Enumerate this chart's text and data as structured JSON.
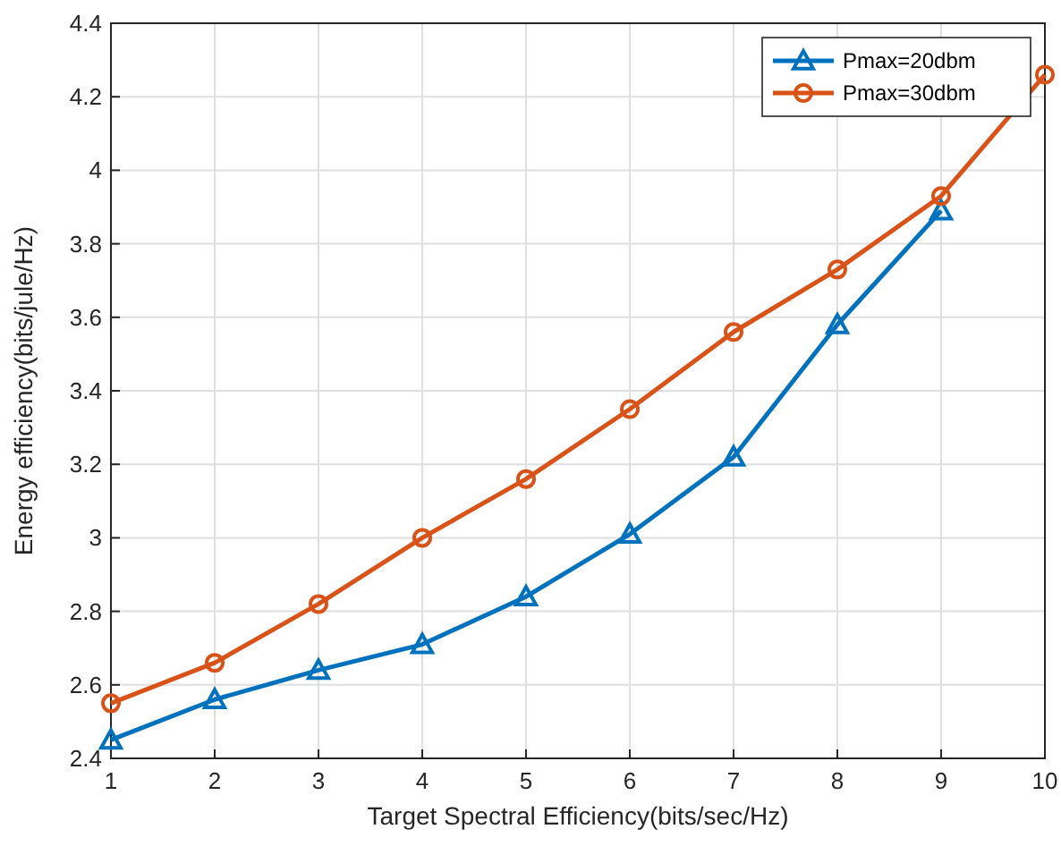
{
  "chart_data": {
    "type": "line",
    "xlabel": "Target Spectral Efficiency(bits/sec/Hz)",
    "ylabel": "Energy efficiency(bits/jule/Hz)",
    "x": [
      1,
      2,
      3,
      4,
      5,
      6,
      7,
      8,
      9,
      10
    ],
    "series": [
      {
        "name": "Pmax=20dbm",
        "color": "#0072bd",
        "marker": "triangle",
        "values": [
          2.45,
          2.56,
          2.64,
          2.71,
          2.84,
          3.01,
          3.22,
          3.58,
          3.89,
          null
        ]
      },
      {
        "name": "Pmax=30dbm",
        "color": "#d95319",
        "marker": "circle",
        "values": [
          2.55,
          2.66,
          2.82,
          3.0,
          3.16,
          3.35,
          3.56,
          3.73,
          3.93,
          4.26
        ]
      }
    ],
    "xlim": [
      1,
      10
    ],
    "xticks": [
      1,
      2,
      3,
      4,
      5,
      6,
      7,
      8,
      9,
      10
    ],
    "ylim": [
      2.4,
      4.4
    ],
    "yticks": [
      2.4,
      2.6,
      2.8,
      3,
      3.2,
      3.4,
      3.6,
      3.8,
      4,
      4.2,
      4.4
    ],
    "grid": true,
    "legend": "top right",
    "line_style": "solid"
  }
}
